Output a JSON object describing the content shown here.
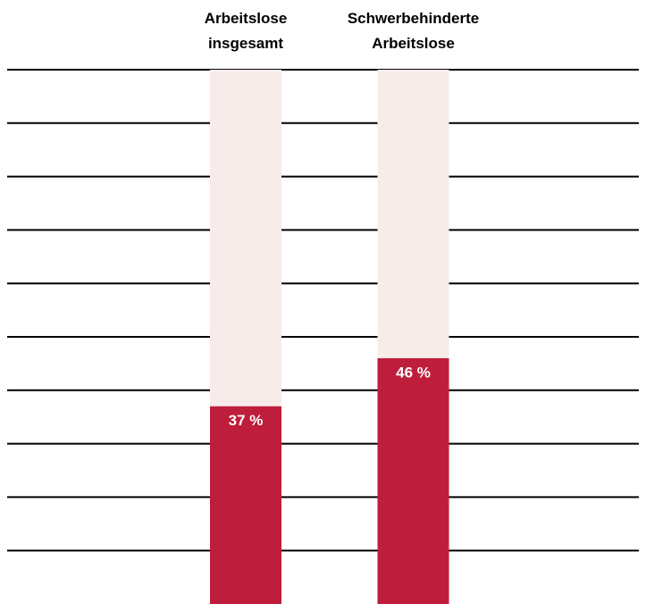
{
  "chart_data": {
    "type": "bar",
    "categories": [
      "Arbeitslose insgesamt",
      "Schwerbehinderte Arbeitslose"
    ],
    "values": [
      37,
      46
    ],
    "value_labels": [
      "37 %",
      "46 %"
    ],
    "color": "#be1e3c",
    "track_color": "#f7ece9",
    "ylim": [
      0,
      100
    ],
    "yticks": [
      10,
      20,
      30,
      40,
      50,
      60,
      70,
      80,
      90,
      100
    ],
    "grid": true
  }
}
